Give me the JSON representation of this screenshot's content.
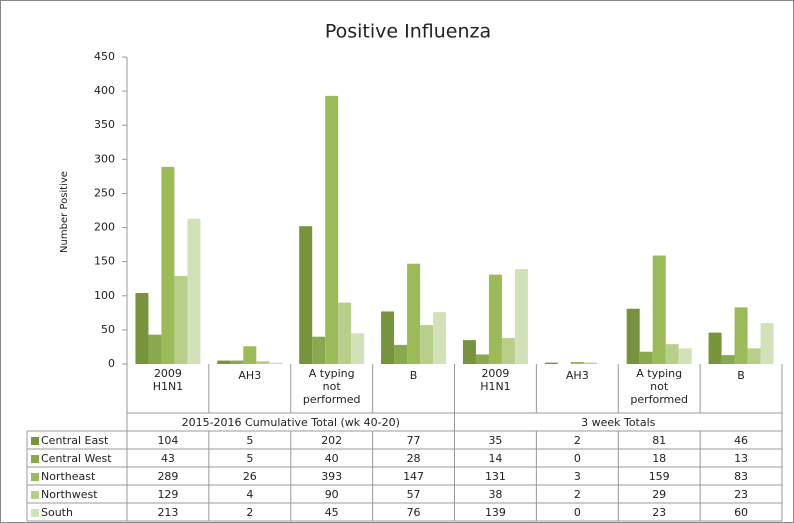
{
  "chart_data": {
    "type": "bar",
    "title": "Positive Influenza",
    "y_label": "Number Positive",
    "groups": [
      "2015-2016 Cumulative Total (wk 40-20)",
      "3 week Totals"
    ],
    "categories": [
      "2009 H1N1",
      "AH3",
      "A typing not performed",
      "B",
      "2009 H1N1",
      "AH3",
      "A typing not performed",
      "B"
    ],
    "series": [
      {
        "name": "Central East",
        "color": "#77933c",
        "values": [
          104,
          5,
          202,
          77,
          35,
          2,
          81,
          46
        ]
      },
      {
        "name": "Central West",
        "color": "#8aa84e",
        "values": [
          43,
          5,
          40,
          28,
          14,
          0,
          18,
          13
        ]
      },
      {
        "name": "Northeast",
        "color": "#9bbb59",
        "values": [
          289,
          26,
          393,
          147,
          131,
          3,
          159,
          83
        ]
      },
      {
        "name": "Northwest",
        "color": "#b7cf8b",
        "values": [
          129,
          4,
          90,
          57,
          38,
          2,
          29,
          23
        ]
      },
      {
        "name": "South",
        "color": "#d2e2b8",
        "values": [
          213,
          2,
          45,
          76,
          139,
          0,
          23,
          60
        ]
      }
    ],
    "ylim": [
      0,
      450
    ],
    "yticks": [
      0,
      50,
      100,
      150,
      200,
      250,
      300,
      350,
      400,
      450
    ],
    "grid": false
  }
}
